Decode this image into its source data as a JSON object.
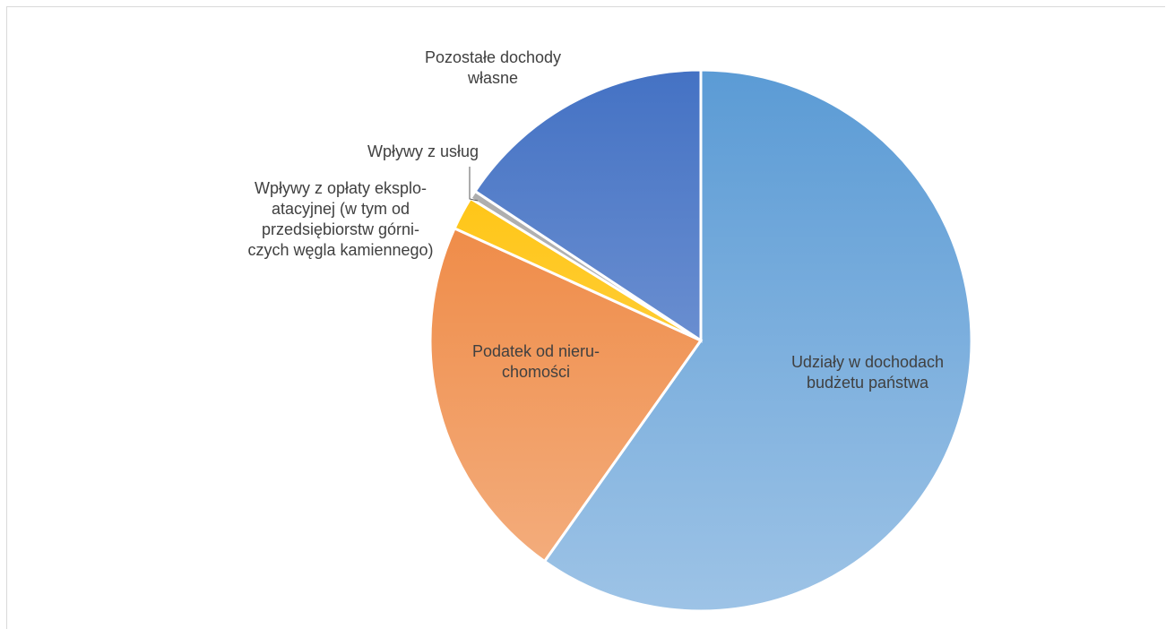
{
  "chart_data": {
    "type": "pie",
    "title": "",
    "slices": [
      {
        "label": "Udziały w dochodach budżetu państwa",
        "value": 59.8,
        "color_top": "#5b9bd5",
        "color_bottom": "#9dc3e6"
      },
      {
        "label": "Podatek od nieruchomości",
        "value": 22.0,
        "color_top": "#ed7d31",
        "color_bottom": "#f4b183"
      },
      {
        "label": "Wpływy z opłaty eksploatacyjnej (w tym od przedsiębiorstw górniczych węgla kamiennego)",
        "value": 2.0,
        "color_top": "#ffc000",
        "color_bottom": "#ffd966"
      },
      {
        "label": "Wpływy z usług",
        "value": 0.5,
        "color_top": "#a5a5a5",
        "color_bottom": "#c9c9c9"
      },
      {
        "label": "Pozostałe dochody własne",
        "value": 15.7,
        "color_top": "#4472c4",
        "color_bottom": "#8faadc"
      }
    ],
    "legend": "none",
    "labels_display": [
      [
        "Udziały w dochodach",
        "budżetu państwa"
      ],
      [
        "Podatek od nieru-",
        "chomości"
      ],
      [
        "Wpływy z opłaty eksplo-",
        "atacyjnej (w tym od",
        "przedsiębiorstw górni-",
        "czych węgla kamiennego)"
      ],
      [
        "Wpływy z usług"
      ],
      [
        "Pozostałe dochody",
        "własne"
      ]
    ]
  }
}
